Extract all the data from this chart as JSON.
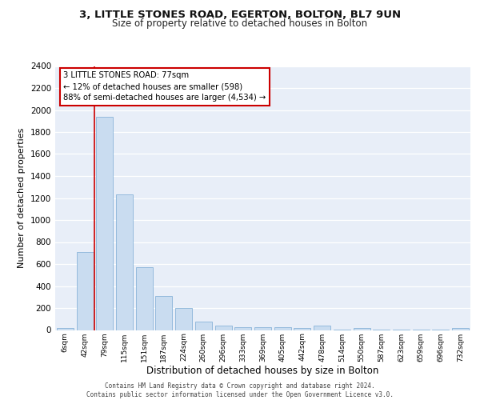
{
  "title1": "3, LITTLE STONES ROAD, EGERTON, BOLTON, BL7 9UN",
  "title2": "Size of property relative to detached houses in Bolton",
  "xlabel": "Distribution of detached houses by size in Bolton",
  "ylabel": "Number of detached properties",
  "bar_labels": [
    "6sqm",
    "42sqm",
    "79sqm",
    "115sqm",
    "151sqm",
    "187sqm",
    "224sqm",
    "260sqm",
    "296sqm",
    "333sqm",
    "369sqm",
    "405sqm",
    "442sqm",
    "478sqm",
    "514sqm",
    "550sqm",
    "587sqm",
    "623sqm",
    "659sqm",
    "696sqm",
    "732sqm"
  ],
  "bar_values": [
    15,
    710,
    1940,
    1230,
    570,
    310,
    200,
    80,
    38,
    28,
    25,
    25,
    15,
    38,
    5,
    15,
    5,
    3,
    3,
    2,
    15
  ],
  "bar_color": "#c9dcf0",
  "bar_edge_color": "#8ab4d8",
  "vline_bar_index": 2,
  "vline_color": "#cc0000",
  "annotation_text": "3 LITTLE STONES ROAD: 77sqm\n← 12% of detached houses are smaller (598)\n88% of semi-detached houses are larger (4,534) →",
  "annotation_box_facecolor": "#ffffff",
  "annotation_box_edgecolor": "#cc0000",
  "ylim_max": 2400,
  "yticks": [
    0,
    200,
    400,
    600,
    800,
    1000,
    1200,
    1400,
    1600,
    1800,
    2000,
    2200,
    2400
  ],
  "bg_color": "#e8eef8",
  "grid_color": "#ffffff",
  "footer_line1": "Contains HM Land Registry data © Crown copyright and database right 2024.",
  "footer_line2": "Contains public sector information licensed under the Open Government Licence v3.0."
}
